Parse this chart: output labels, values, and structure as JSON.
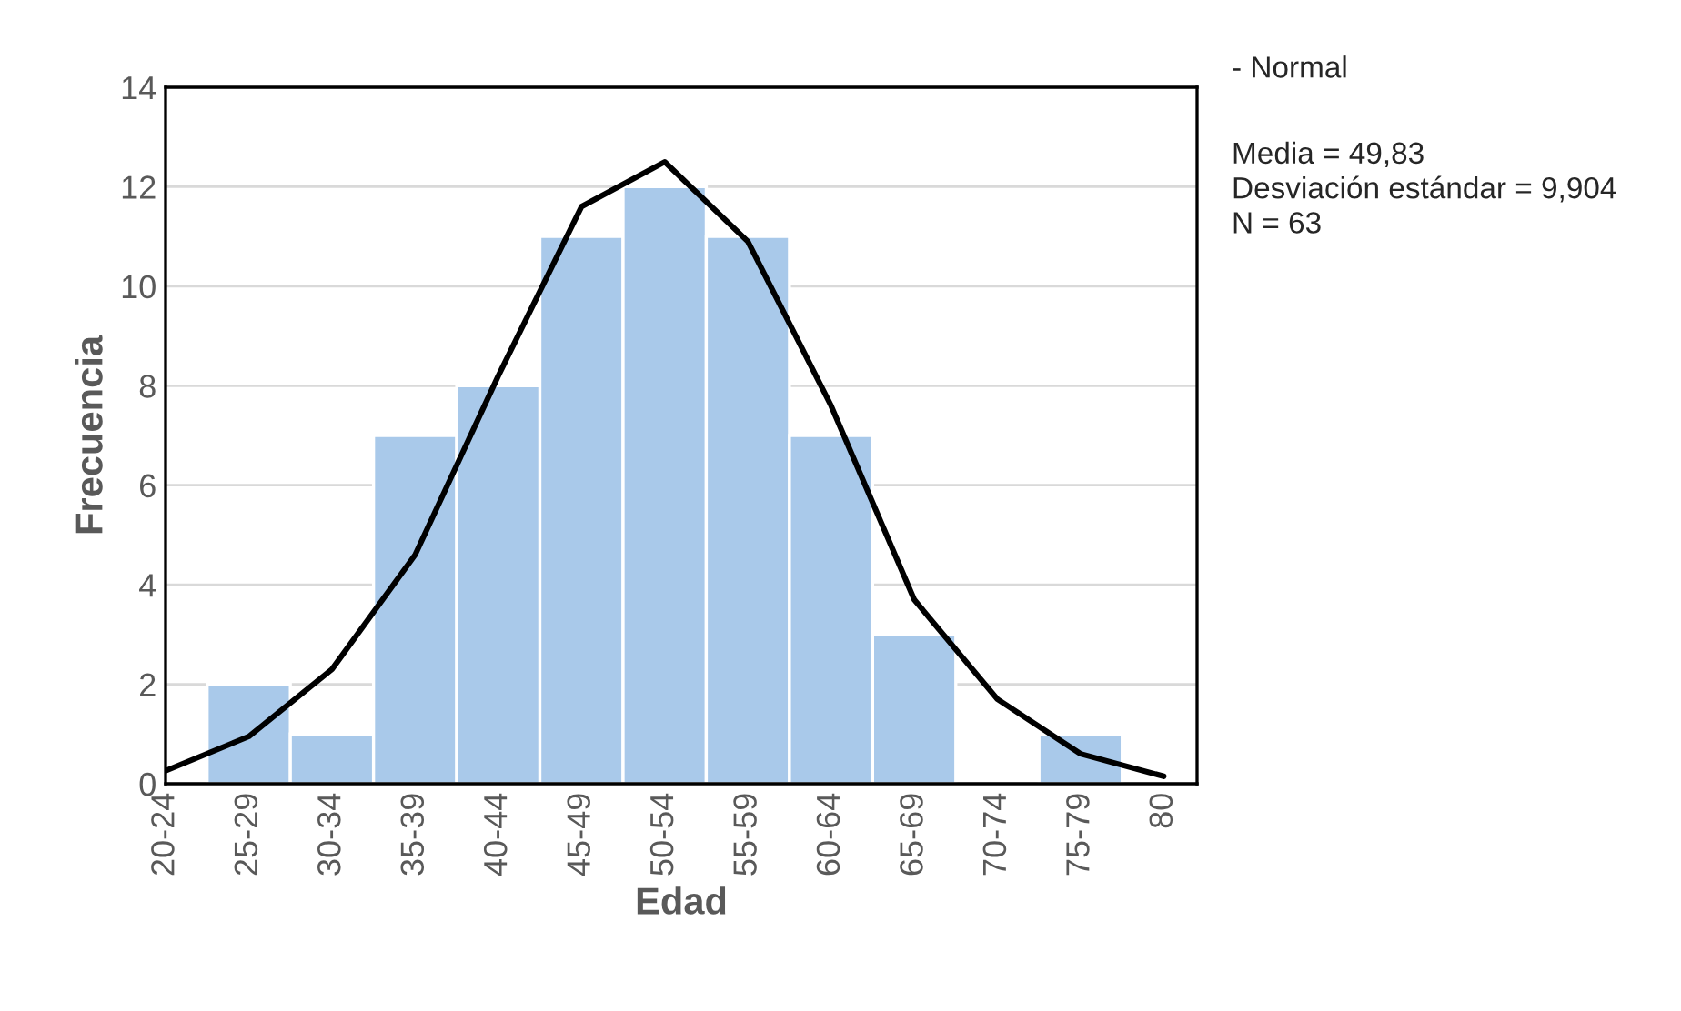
{
  "chart_data": {
    "type": "bar",
    "xlabel": "Edad",
    "ylabel": "Frecuencia",
    "categories": [
      "20-24",
      "25-29",
      "30-34",
      "35-39",
      "40-44",
      "45-49",
      "50-54",
      "55-59",
      "60-64",
      "65-69",
      "70-74",
      "75-79",
      "80"
    ],
    "series": [
      {
        "color": "#a9c9ea",
        "values": [
          null,
          2,
          1,
          7,
          8,
          11,
          12,
          11,
          7,
          3,
          0,
          1,
          null
        ]
      },
      {
        "type": "line",
        "color": "#000000",
        "values": [
          0.26,
          0.95,
          2.3,
          4.6,
          8.2,
          11.6,
          12.5,
          10.9,
          7.6,
          3.7,
          1.7,
          0.6,
          0.15
        ]
      }
    ],
    "ylim": [
      0,
      14
    ],
    "yticks": [
      0,
      2,
      4,
      6,
      8,
      10,
      12,
      14
    ],
    "grid": "y",
    "legend": false,
    "marker": "none",
    "line_style": "solid",
    "annotations": [
      "- Normal",
      "Media = 49,83\nDesviación estándar = 9,904\nN = 63"
    ]
  }
}
